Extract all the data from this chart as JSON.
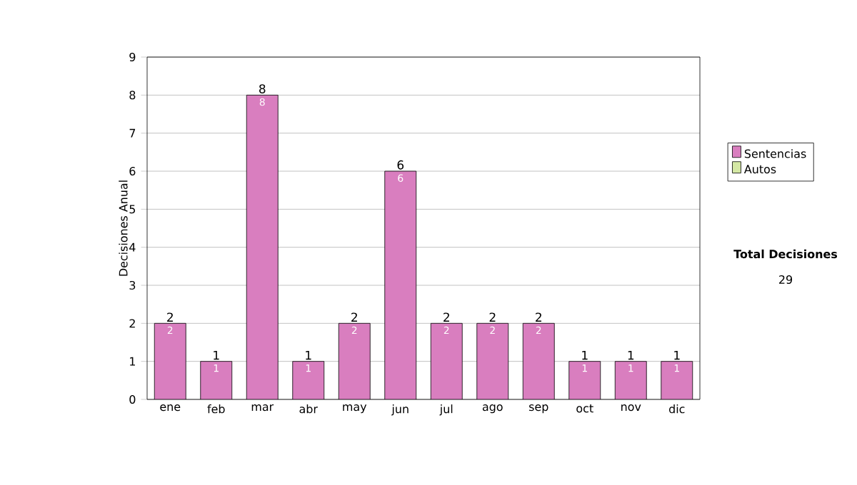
{
  "chart_data": {
    "type": "bar",
    "stacked": true,
    "ylabel": "Decisiones Anual",
    "categories": [
      "ene",
      "feb",
      "mar",
      "abr",
      "may",
      "jun",
      "jul",
      "ago",
      "sep",
      "oct",
      "nov",
      "dic"
    ],
    "series": [
      {
        "name": "Sentencias",
        "color": "#d97ebf",
        "values": [
          2,
          1,
          8,
          1,
          2,
          6,
          2,
          2,
          2,
          1,
          1,
          1
        ],
        "value_labels": [
          "2",
          "1",
          "8",
          "1",
          "2",
          "6",
          "2",
          "2",
          "2",
          "1",
          "1",
          "1"
        ]
      },
      {
        "name": "Autos",
        "color": "#d4e8a4",
        "values": [
          0,
          0,
          0,
          0,
          0,
          0,
          0,
          0,
          0,
          0,
          0,
          0
        ]
      }
    ],
    "ylim": [
      0,
      9
    ],
    "yticks": [
      0,
      1,
      2,
      3,
      4,
      5,
      6,
      7,
      8,
      9
    ],
    "grid": "y",
    "legend": "right",
    "totals": [
      "2",
      "1",
      "8",
      "1",
      "2",
      "6",
      "2",
      "2",
      "2",
      "1",
      "1",
      "1"
    ],
    "annotations": [
      "Total Decisiones",
      "29"
    ]
  }
}
